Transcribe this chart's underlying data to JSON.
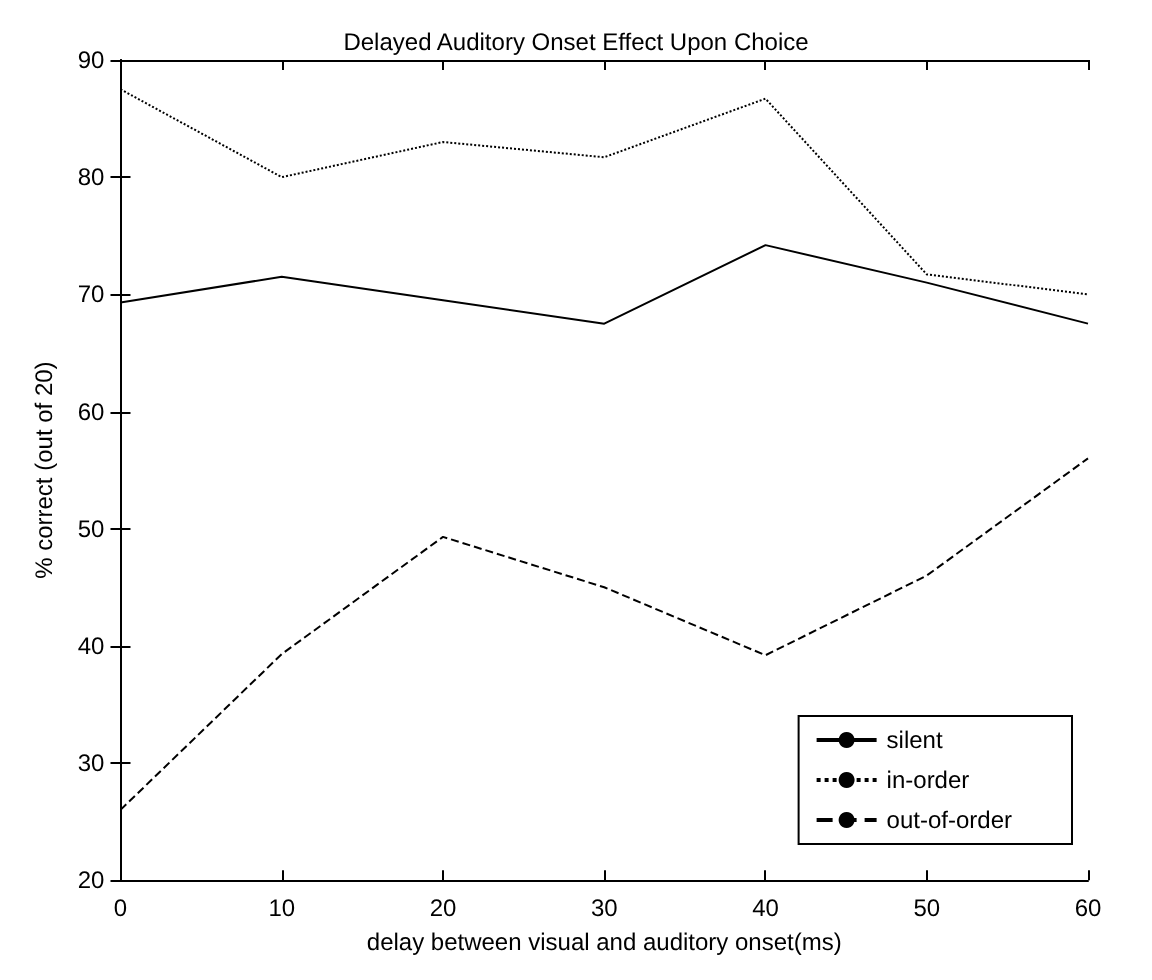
{
  "chart_data": {
    "type": "line",
    "title": "Delayed Auditory Onset Effect Upon Choice",
    "xlabel": "delay between visual and auditory onset(ms)",
    "ylabel": "% correct (out of 20)",
    "x": [
      0,
      10,
      20,
      30,
      40,
      50,
      60
    ],
    "xlim": [
      0,
      60
    ],
    "xticks": [
      0,
      10,
      20,
      30,
      40,
      50,
      60
    ],
    "ylim": [
      20,
      90
    ],
    "yticks": [
      20,
      30,
      40,
      50,
      60,
      70,
      80,
      90
    ],
    "grid": false,
    "legend": "bottom right",
    "marker": "none",
    "series": [
      {
        "name": "silent",
        "color": "#000000",
        "line_style": "solid",
        "values": [
          69.3,
          71.5,
          69.5,
          67.5,
          74.2,
          71,
          67.5
        ]
      },
      {
        "name": "in-order",
        "color": "#000000",
        "line_style": "dotted",
        "values": [
          87.5,
          80,
          83,
          81.7,
          86.7,
          71.7,
          70
        ]
      },
      {
        "name": "out-of-order",
        "color": "#000000",
        "line_style": "dashed",
        "values": [
          26,
          39.3,
          49.3,
          45,
          39.2,
          46,
          56
        ]
      }
    ]
  }
}
